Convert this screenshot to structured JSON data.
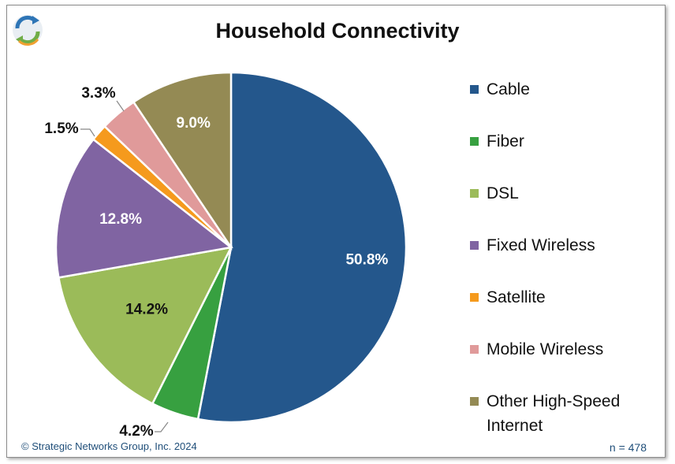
{
  "title": "Household Connectivity",
  "footer": {
    "copyright": "© Strategic Networks Group, Inc. 2024",
    "sample_size": "n = 478"
  },
  "chart_data": {
    "type": "pie",
    "title": "Household Connectivity",
    "slices": [
      {
        "label": "Cable",
        "value": 50.8,
        "display": "50.8%",
        "color": "#24578c",
        "label_color": "#ffffff"
      },
      {
        "label": "Fiber",
        "value": 4.2,
        "display": "4.2%",
        "color": "#37a040",
        "label_color": "#111111"
      },
      {
        "label": "DSL",
        "value": 14.2,
        "display": "14.2%",
        "color": "#9bbb59",
        "label_color": "#111111"
      },
      {
        "label": "Fixed Wireless",
        "value": 12.8,
        "display": "12.8%",
        "color": "#8064a2",
        "label_color": "#ffffff"
      },
      {
        "label": "Satellite",
        "value": 1.5,
        "display": "1.5%",
        "color": "#f59a1d",
        "label_color": "#111111"
      },
      {
        "label": "Mobile Wireless",
        "value": 3.3,
        "display": "3.3%",
        "color": "#e09a9a",
        "label_color": "#111111"
      },
      {
        "label": "Other High-Speed Internet",
        "value": 9.0,
        "display": "9.0%",
        "color": "#948a54",
        "label_color": "#ffffff"
      }
    ],
    "legend": {
      "position": "right"
    }
  },
  "logo": {
    "icon": "refresh-arrows-icon",
    "colors": [
      "#2e75b6",
      "#70ad47",
      "#f0a030"
    ]
  }
}
